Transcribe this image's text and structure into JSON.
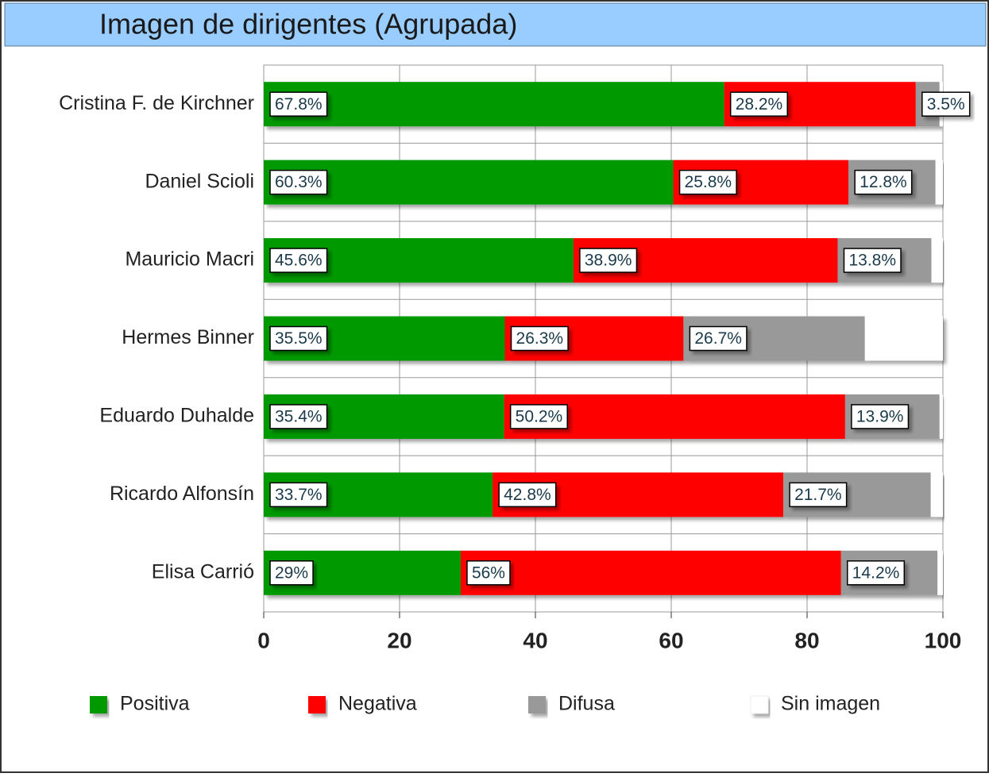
{
  "chart_data": {
    "type": "stacked_barh",
    "title": "Imagen de dirigentes (Agrupada)",
    "categories": [
      "Cristina F. de Kirchner",
      "Daniel Scioli",
      "Mauricio Macri",
      "Hermes Binner",
      "Eduardo Duhalde",
      "Ricardo Alfonsín",
      "Elisa Carrió"
    ],
    "series": [
      {
        "name": "Positiva",
        "color": "#009900",
        "values": [
          67.8,
          60.3,
          45.6,
          35.5,
          35.4,
          33.7,
          29
        ],
        "value_labels": [
          "67.8%",
          "60.3%",
          "45.6%",
          "35.5%",
          "35.4%",
          "33.7%",
          "29%"
        ]
      },
      {
        "name": "Negativa",
        "color": "#ff0000",
        "values": [
          28.2,
          25.8,
          38.9,
          26.3,
          50.2,
          42.8,
          56
        ],
        "value_labels": [
          "28.2%",
          "25.8%",
          "38.9%",
          "26.3%",
          "50.2%",
          "42.8%",
          "56%"
        ]
      },
      {
        "name": "Difusa",
        "color": "#999999",
        "values": [
          3.5,
          12.8,
          13.8,
          26.7,
          13.9,
          21.7,
          14.2
        ],
        "value_labels": [
          "3.5%",
          "12.8%",
          "13.8%",
          "26.7%",
          "13.9%",
          "21.7%",
          "14.2%"
        ]
      },
      {
        "name": "Sin imagen",
        "color": "#ffffff",
        "values": [
          0.5,
          1.1,
          1.7,
          11.5,
          0.5,
          1.8,
          0.8
        ]
      }
    ],
    "xlim": [
      0,
      100
    ],
    "xticks": [
      0,
      20,
      40,
      60,
      80,
      100
    ],
    "grid": true,
    "legend": "bottom"
  }
}
